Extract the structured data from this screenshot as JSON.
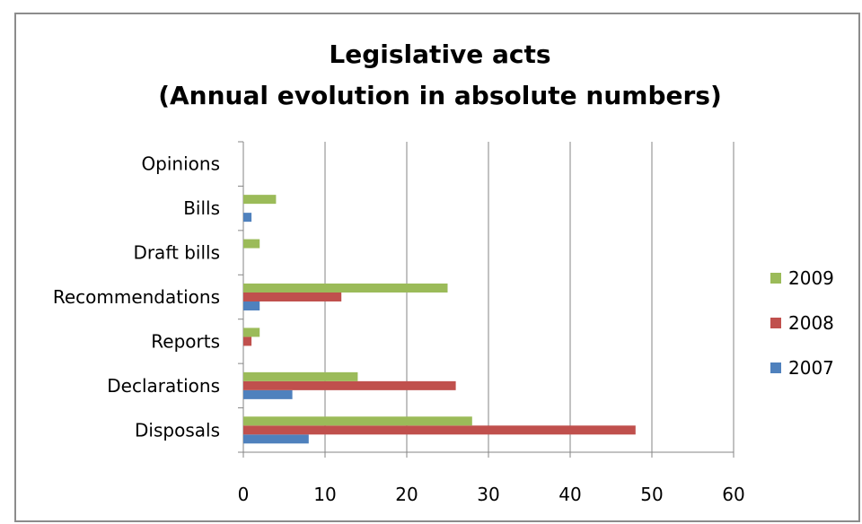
{
  "chart_data": {
    "type": "bar",
    "orientation": "horizontal",
    "title": "Legislative acts",
    "subtitle": "(Annual evolution in absolute numbers)",
    "categories": [
      "Disposals",
      "Declarations",
      "Reports",
      "Recommendations",
      "Draft bills",
      "Bills",
      "Opinions"
    ],
    "series": [
      {
        "name": "2007",
        "color": "#4f81bd",
        "values": [
          8,
          6,
          0,
          2,
          0,
          1,
          0
        ]
      },
      {
        "name": "2008",
        "color": "#c0504d",
        "values": [
          48,
          26,
          1,
          12,
          0,
          0,
          0
        ]
      },
      {
        "name": "2009",
        "color": "#9bbb59",
        "values": [
          28,
          14,
          2,
          25,
          2,
          4,
          0
        ]
      }
    ],
    "xlim": [
      0,
      60
    ],
    "xticks": [
      0,
      10,
      20,
      30,
      40,
      50,
      60
    ],
    "grid": "vertical",
    "legend": {
      "placement": "right",
      "order": [
        "2009",
        "2008",
        "2007"
      ]
    }
  }
}
